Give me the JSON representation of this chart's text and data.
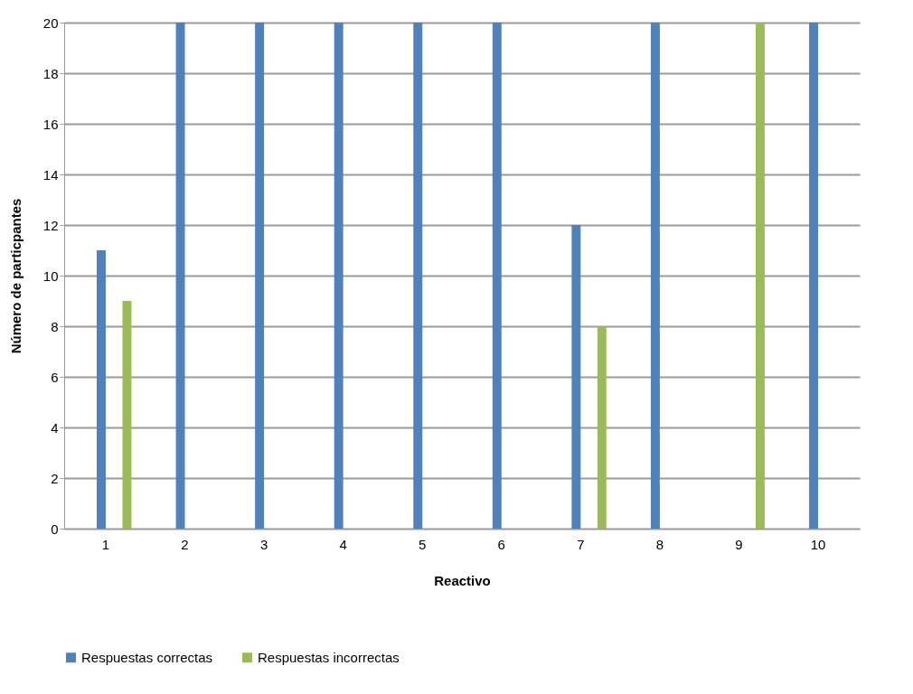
{
  "chart_data": {
    "type": "bar",
    "xlabel": "Reactivo",
    "ylabel": "Número de particpantes",
    "categories": [
      "1",
      "2",
      "3",
      "4",
      "5",
      "6",
      "7",
      "8",
      "9",
      "10"
    ],
    "series": [
      {
        "name": "Respuestas correctas",
        "color": "#4f81bd",
        "values": [
          11,
          20,
          20,
          20,
          20,
          20,
          12,
          20,
          0,
          20
        ]
      },
      {
        "name": "Respuestas incorrectas",
        "color": "#9bbb59",
        "values": [
          9,
          0,
          0,
          0,
          0,
          0,
          8,
          0,
          20,
          0
        ]
      }
    ],
    "ylim": [
      0,
      20
    ],
    "yticks": [
      0,
      2,
      4,
      6,
      8,
      10,
      12,
      14,
      16,
      18,
      20
    ],
    "grid": "y",
    "legend": "bottom"
  }
}
